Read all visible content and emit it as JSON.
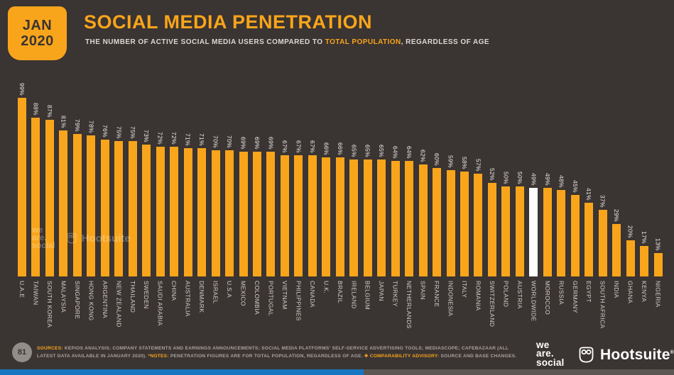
{
  "header": {
    "date_line1": "JAN",
    "date_line2": "2020",
    "title": "SOCIAL MEDIA PENETRATION",
    "subtitle_prefix": "THE NUMBER OF ACTIVE SOCIAL MEDIA USERS COMPARED TO ",
    "subtitle_highlight": "TOTAL POPULATION",
    "subtitle_suffix": ", REGARDLESS OF AGE"
  },
  "chart_data": {
    "type": "bar",
    "title": "Social media penetration by country, Jan 2020",
    "unit": "%",
    "ylim": [
      0,
      100
    ],
    "grid": false,
    "value_labels": "rotated-90-above-bars",
    "categories": [
      "U.A.E",
      "TAIWAN",
      "SOUTH KOREA",
      "MALAYSIA",
      "SINGAPORE",
      "HONG KONG",
      "ARGENTINA",
      "NEW ZEALAND",
      "THAILAND",
      "SWEDEN",
      "SAUDI ARABIA",
      "CHINA",
      "AUSTRALIA",
      "DENMARK",
      "ISRAEL",
      "U.S.A",
      "MEXICO",
      "COLOMBIA",
      "PORTUGAL",
      "VIETNAM",
      "PHILIPPINES",
      "CANADA",
      "U.K.",
      "BRAZIL",
      "IRELAND",
      "BELGIUM",
      "JAPAN",
      "TURKEY",
      "NETHERLANDS",
      "SPAIN",
      "FRANCE",
      "INDONESIA",
      "ITALY",
      "ROMANIA",
      "SWITZERLAND",
      "POLAND",
      "AUSTRIA",
      "WORLDWIDE",
      "MOROCCO",
      "RUSSIA",
      "GERMANY",
      "EGYPT",
      "SOUTH AFRICA",
      "INDIA",
      "GHANA",
      "KENYA",
      "NIGERIA"
    ],
    "values": [
      99,
      88,
      87,
      81,
      79,
      78,
      76,
      75,
      75,
      73,
      72,
      72,
      71,
      71,
      70,
      70,
      69,
      69,
      69,
      67,
      67,
      67,
      66,
      66,
      65,
      65,
      65,
      64,
      64,
      62,
      60,
      59,
      58,
      57,
      52,
      50,
      50,
      49,
      49,
      48,
      45,
      41,
      37,
      29,
      20,
      17,
      13
    ],
    "highlight_category": "WORLDWIDE",
    "bar_color": "#F9A51B",
    "highlight_bar_color": "#FFFFFF"
  },
  "colors": {
    "background": "#3A3432",
    "accent_orange": "#F9A51B",
    "text_light": "#DDD8D4",
    "progress_blue": "#1777C0",
    "progress_track": "#5B5652"
  },
  "watermark": {
    "we_are_social_lines": [
      "we",
      "are.",
      "social"
    ],
    "hootsuite": "Hootsuite"
  },
  "footer": {
    "page_number": "81",
    "sources_label": "SOURCES:",
    "sources_text": " KEPIOS ANALYSIS; COMPANY STATEMENTS AND EARNINGS ANNOUNCEMENTS; SOCIAL MEDIA PLATFORMS' SELF-SERVICE ADVERTISING TOOLS; MEDIASCOPE; CAFEBAZAAR (ALL LATEST DATA AVAILABLE IN JANUARY 2020). ",
    "notes_label": "*NOTES:",
    "notes_text": " PENETRATION FIGURES ARE FOR TOTAL POPULATION, REGARDLESS OF AGE. ",
    "advisory_icon": "✚",
    "advisory_label": " COMPARABILITY ADVISORY:",
    "advisory_text": " SOURCE AND BASE CHANGES.",
    "we_are_social_lines": [
      "we",
      "are.",
      "social"
    ],
    "hootsuite": "Hootsuite",
    "registered_mark": "®"
  },
  "progress_bar": {
    "filled_percent": 54
  }
}
